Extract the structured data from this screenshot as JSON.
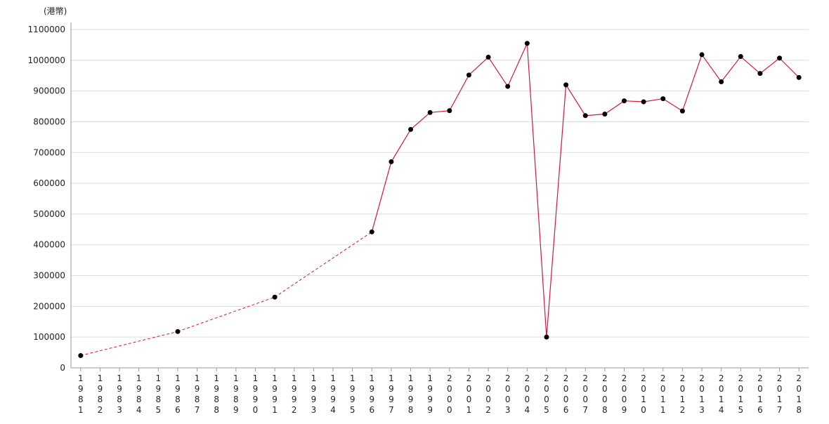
{
  "chart_data": {
    "type": "line",
    "y_label": "(港幣)",
    "categories": [
      "1981",
      "1982",
      "1983",
      "1984",
      "1985",
      "1986",
      "1987",
      "1988",
      "1989",
      "1990",
      "1991",
      "1992",
      "1993",
      "1994",
      "1995",
      "1996",
      "1997",
      "1998",
      "1999",
      "2000",
      "2001",
      "2002",
      "2003",
      "2004",
      "2005",
      "2006",
      "2007",
      "2008",
      "2009",
      "2010",
      "2011",
      "2012",
      "2013",
      "2014",
      "2015",
      "2016",
      "2017",
      "2018"
    ],
    "values": [
      40000,
      null,
      null,
      null,
      null,
      118000,
      null,
      null,
      null,
      null,
      230000,
      null,
      null,
      null,
      null,
      442000,
      670000,
      775000,
      830000,
      836000,
      952000,
      1010000,
      915000,
      1055000,
      100000,
      920000,
      820000,
      825000,
      868000,
      865000,
      875000,
      835000,
      1018000,
      930000,
      1012000,
      957000,
      1007000,
      944000
    ],
    "color": "#dc143c",
    "marker_color": "#000000",
    "ylim": [
      0,
      1100000
    ],
    "yticks": [
      0,
      100000,
      200000,
      300000,
      400000,
      500000,
      600000,
      700000,
      800000,
      900000,
      1000000,
      1100000
    ],
    "grid": true
  }
}
